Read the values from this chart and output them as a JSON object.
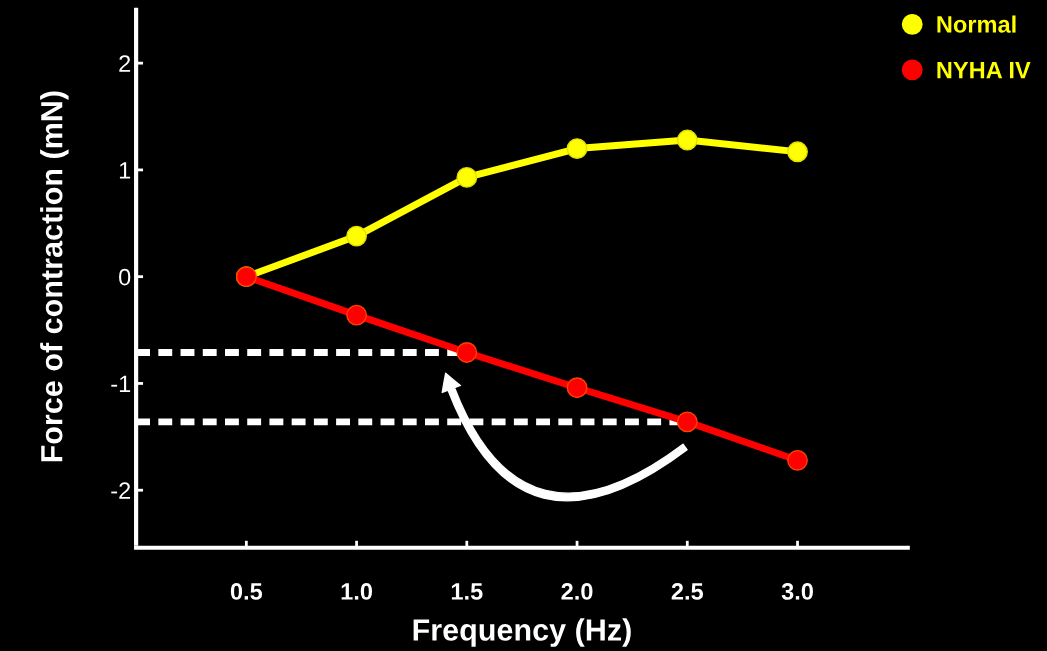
{
  "chart_data": {
    "type": "line",
    "xlabel": "Frequency (Hz)",
    "ylabel": "Force of contraction (mN)",
    "xlim": [
      0,
      3.5
    ],
    "xticks": [
      {
        "value": 0.5,
        "label": "0.5"
      },
      {
        "value": 1,
        "label": "1.0"
      },
      {
        "value": 1.5,
        "label": "1.5"
      },
      {
        "value": 2,
        "label": "2.0"
      },
      {
        "value": 2.5,
        "label": "2.5"
      },
      {
        "value": 3,
        "label": "3.0"
      }
    ],
    "ylim": [
      -2.5,
      2.5
    ],
    "yticks": [
      -2,
      -1,
      0,
      1,
      2
    ],
    "grid": false,
    "legend": "top right",
    "marker": "circle",
    "x": [
      0.5,
      1.0,
      1.5,
      2.0,
      2.5,
      3.0
    ],
    "series": [
      {
        "name": "Normal",
        "color": "#ffff00",
        "values": [
          0,
          0.38,
          0.93,
          1.2,
          1.28,
          1.17
        ]
      },
      {
        "name": "NYHA IV",
        "color": "#ff0000",
        "values": [
          0,
          -0.36,
          -0.71,
          -1.04,
          -1.36,
          -1.72
        ]
      },
      {
        "color": "#ffffff",
        "x": [
          0,
          1.5
        ],
        "values": [
          -0.71,
          -0.71
        ],
        "line_style": "dotted",
        "marker": "none"
      },
      {
        "color": "#ffffff",
        "x": [
          0,
          2.5
        ],
        "values": [
          -1.36,
          -1.36
        ],
        "line_style": "dotted",
        "marker": "none"
      }
    ]
  }
}
